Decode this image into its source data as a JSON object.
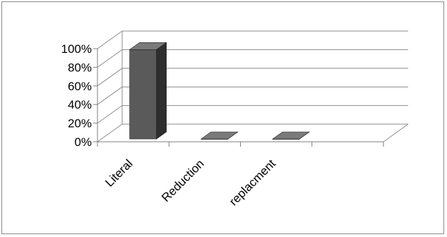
{
  "chart_data": {
    "type": "bar",
    "style": "3d-column",
    "categories": [
      "Literal",
      "Reduction",
      "replacment",
      ""
    ],
    "values": [
      96,
      0,
      0,
      0
    ],
    "ylim": [
      0,
      100
    ],
    "yticks": [
      "0%",
      "20%",
      "40%",
      "60%",
      "80%",
      "100%"
    ],
    "grid": true,
    "legend": "none",
    "colors": {
      "bar_front": "#5a5a5a",
      "bar_side": "#2e2e2e",
      "bar_top": "#7a7a7a",
      "grid": "#8c8c8c",
      "axis": "#7f7f7f"
    }
  }
}
